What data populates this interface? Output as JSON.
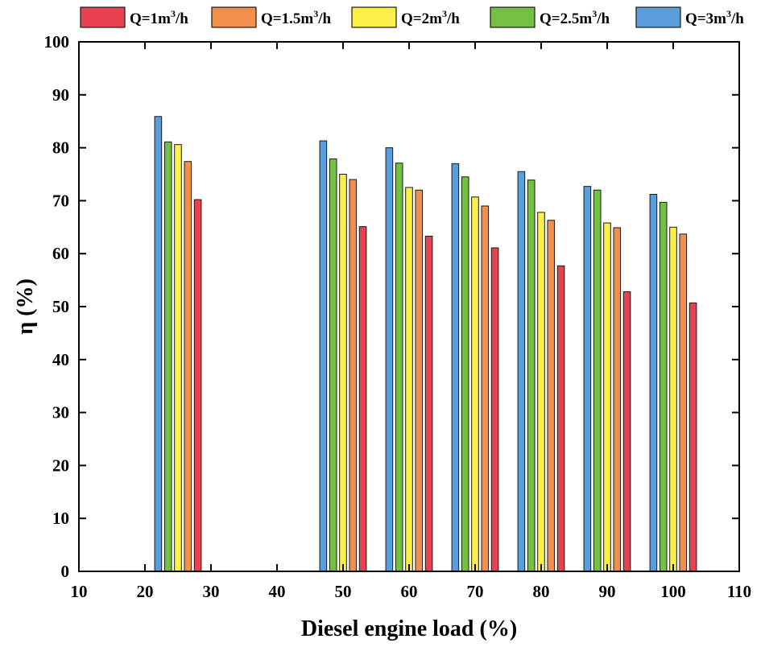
{
  "chart_data": {
    "type": "bar",
    "title": "",
    "xlabel": "Diesel engine load (%)",
    "ylabel": "η (%)",
    "xlim": [
      10,
      110
    ],
    "ylim": [
      0,
      100
    ],
    "xticks": [
      "10",
      "20",
      "30",
      "40",
      "50",
      "60",
      "70",
      "80",
      "90",
      "100",
      "110"
    ],
    "yticks": [
      "0",
      "10",
      "20",
      "30",
      "40",
      "50",
      "60",
      "70",
      "80",
      "90",
      "100"
    ],
    "x": [
      25,
      50,
      60,
      70,
      80,
      90,
      100
    ],
    "legend_position": "top",
    "series": [
      {
        "name_main": "Q=1m",
        "name_sup": "3",
        "name_tail": "/h",
        "color": "#e8414f",
        "values": [
          70.2,
          65.1,
          63.3,
          61.1,
          57.7,
          52.8,
          50.7
        ]
      },
      {
        "name_main": "Q=1.5m",
        "name_sup": "3",
        "name_tail": "/h",
        "color": "#f28f4a",
        "values": [
          77.4,
          74.0,
          72.0,
          69.0,
          66.3,
          64.9,
          63.7
        ]
      },
      {
        "name_main": "Q=2m",
        "name_sup": "3",
        "name_tail": "/h",
        "color": "#fbf049",
        "values": [
          80.6,
          75.0,
          72.5,
          70.7,
          67.8,
          65.8,
          65.0
        ]
      },
      {
        "name_main": "Q=2.5m",
        "name_sup": "3",
        "name_tail": "/h",
        "color": "#74c043",
        "values": [
          81.1,
          77.9,
          77.1,
          74.5,
          73.9,
          72.0,
          69.7
        ]
      },
      {
        "name_main": "Q=3m",
        "name_sup": "3",
        "name_tail": "/h",
        "color": "#5a9ddb",
        "values": [
          85.9,
          81.3,
          80.0,
          77.0,
          75.5,
          72.7,
          71.2
        ]
      }
    ]
  }
}
